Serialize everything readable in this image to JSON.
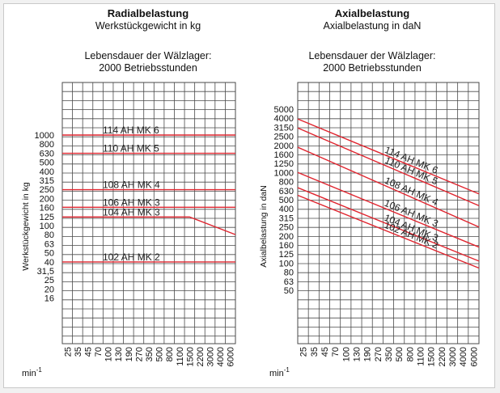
{
  "chart_data": [
    {
      "type": "line",
      "title": "Radialbelastung",
      "subtitle": "Werkstückgewicht in kg",
      "life_line1": "Lebensdauer der Wälzlager:",
      "life_line2": "2000 Betriebsstunden",
      "ylabel": "Werkstückgewicht in kg",
      "xlabel": "min-1",
      "x_unit_base": "min",
      "x_unit_exp": "-1",
      "xscale": "log",
      "yscale": "log",
      "x_ticks": [
        "25",
        "35",
        "45",
        "70",
        "100",
        "130",
        "190",
        "270",
        "350",
        "500",
        "800",
        "1100",
        "1500",
        "2200",
        "3000",
        "4000",
        "6000"
      ],
      "y_ticks": [
        "1000",
        "800",
        "630",
        "500",
        "400",
        "315",
        "250",
        "200",
        "160",
        "125",
        "100",
        "80",
        "63",
        "50",
        "40",
        "31,5",
        "25",
        "20",
        "16"
      ],
      "y_tick_values": [
        1000,
        800,
        630,
        500,
        400,
        315,
        250,
        200,
        160,
        125,
        100,
        80,
        63,
        50,
        40,
        31.5,
        25,
        20,
        16
      ],
      "series": [
        {
          "name": "114 AH MK 6",
          "x": [
            25,
            6000
          ],
          "y": [
            1000,
            1000
          ]
        },
        {
          "name": "110 AH MK 5",
          "x": [
            25,
            6000
          ],
          "y": [
            630,
            630
          ]
        },
        {
          "name": "108 AH MK 4",
          "x": [
            25,
            6000
          ],
          "y": [
            250,
            250
          ]
        },
        {
          "name": "106 AH MK 3",
          "x": [
            25,
            6000
          ],
          "y": [
            160,
            160
          ]
        },
        {
          "name": "104 AH MK 3",
          "x": [
            25,
            1500,
            6000
          ],
          "y": [
            125,
            125,
            80
          ]
        },
        {
          "name": "102 AH MK 2",
          "x": [
            25,
            6000
          ],
          "y": [
            40,
            40
          ]
        }
      ],
      "grid": true,
      "colors": {
        "series": "#e0252f",
        "grid": "#4a4a4a"
      }
    },
    {
      "type": "line",
      "title": "Axialbelastung",
      "subtitle": "Axialbelastung in daN",
      "life_line1": "Lebensdauer der Wälzlager:",
      "life_line2": "2000 Betriebsstunden",
      "ylabel": "Axialbelastung in daN",
      "xlabel": "min-1",
      "x_unit_base": "min",
      "x_unit_exp": "-1",
      "xscale": "log",
      "yscale": "log",
      "x_ticks": [
        "25",
        "35",
        "45",
        "70",
        "100",
        "130",
        "190",
        "270",
        "350",
        "500",
        "800",
        "1100",
        "1500",
        "2200",
        "3000",
        "4000",
        "6000"
      ],
      "y_ticks": [
        "5000",
        "4000",
        "3150",
        "2500",
        "2000",
        "1600",
        "1250",
        "1000",
        "800",
        "630",
        "500",
        "400",
        "315",
        "250",
        "200",
        "160",
        "125",
        "100",
        "80",
        "63",
        "50"
      ],
      "y_tick_values": [
        5000,
        4000,
        3150,
        2500,
        2000,
        1600,
        1250,
        1000,
        800,
        630,
        500,
        400,
        315,
        250,
        200,
        160,
        125,
        100,
        80,
        63,
        50
      ],
      "series": [
        {
          "name": "114 AH MK 6",
          "x": [
            25,
            6000
          ],
          "y": [
            3900,
            580
          ]
        },
        {
          "name": "110 AH MK 5",
          "x": [
            25,
            6000
          ],
          "y": [
            3100,
            430
          ]
        },
        {
          "name": "108 AH MK 4",
          "x": [
            25,
            6000
          ],
          "y": [
            1900,
            250
          ]
        },
        {
          "name": "106 AH MK 3",
          "x": [
            25,
            6000
          ],
          "y": [
            1000,
            150
          ]
        },
        {
          "name": "104 AH MK 3",
          "x": [
            25,
            6000
          ],
          "y": [
            680,
            105
          ]
        },
        {
          "name": "102 AH MK 2",
          "x": [
            25,
            6000
          ],
          "y": [
            560,
            88
          ]
        }
      ],
      "grid": true,
      "colors": {
        "series": "#e0252f",
        "grid": "#4a4a4a"
      }
    }
  ]
}
